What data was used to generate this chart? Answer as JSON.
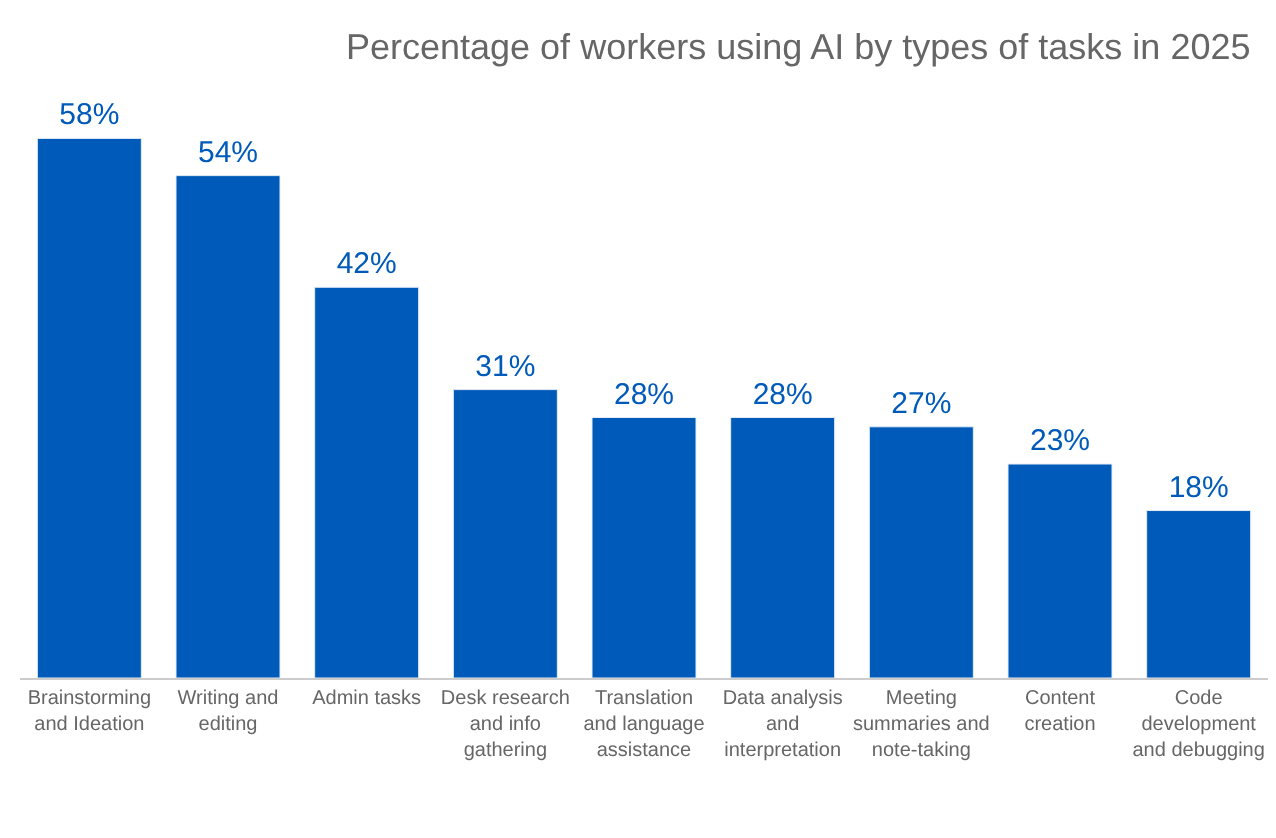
{
  "chart_data": {
    "type": "bar",
    "title": "Percentage of workers using AI by types of tasks in 2025",
    "categories": [
      "Brainstorming and Ideation",
      "Writing and editing",
      "Admin tasks",
      "Desk research and info gathering",
      "Translation and language assistance",
      "Data analysis and interpretation",
      "Meeting summaries and note-taking",
      "Content creation",
      "Code development and debugging"
    ],
    "values": [
      58,
      54,
      42,
      31,
      28,
      28,
      27,
      23,
      18
    ],
    "value_labels": [
      "58%",
      "54%",
      "42%",
      "31%",
      "28%",
      "28%",
      "27%",
      "23%",
      "18%"
    ],
    "color": "#005ab9"
  }
}
